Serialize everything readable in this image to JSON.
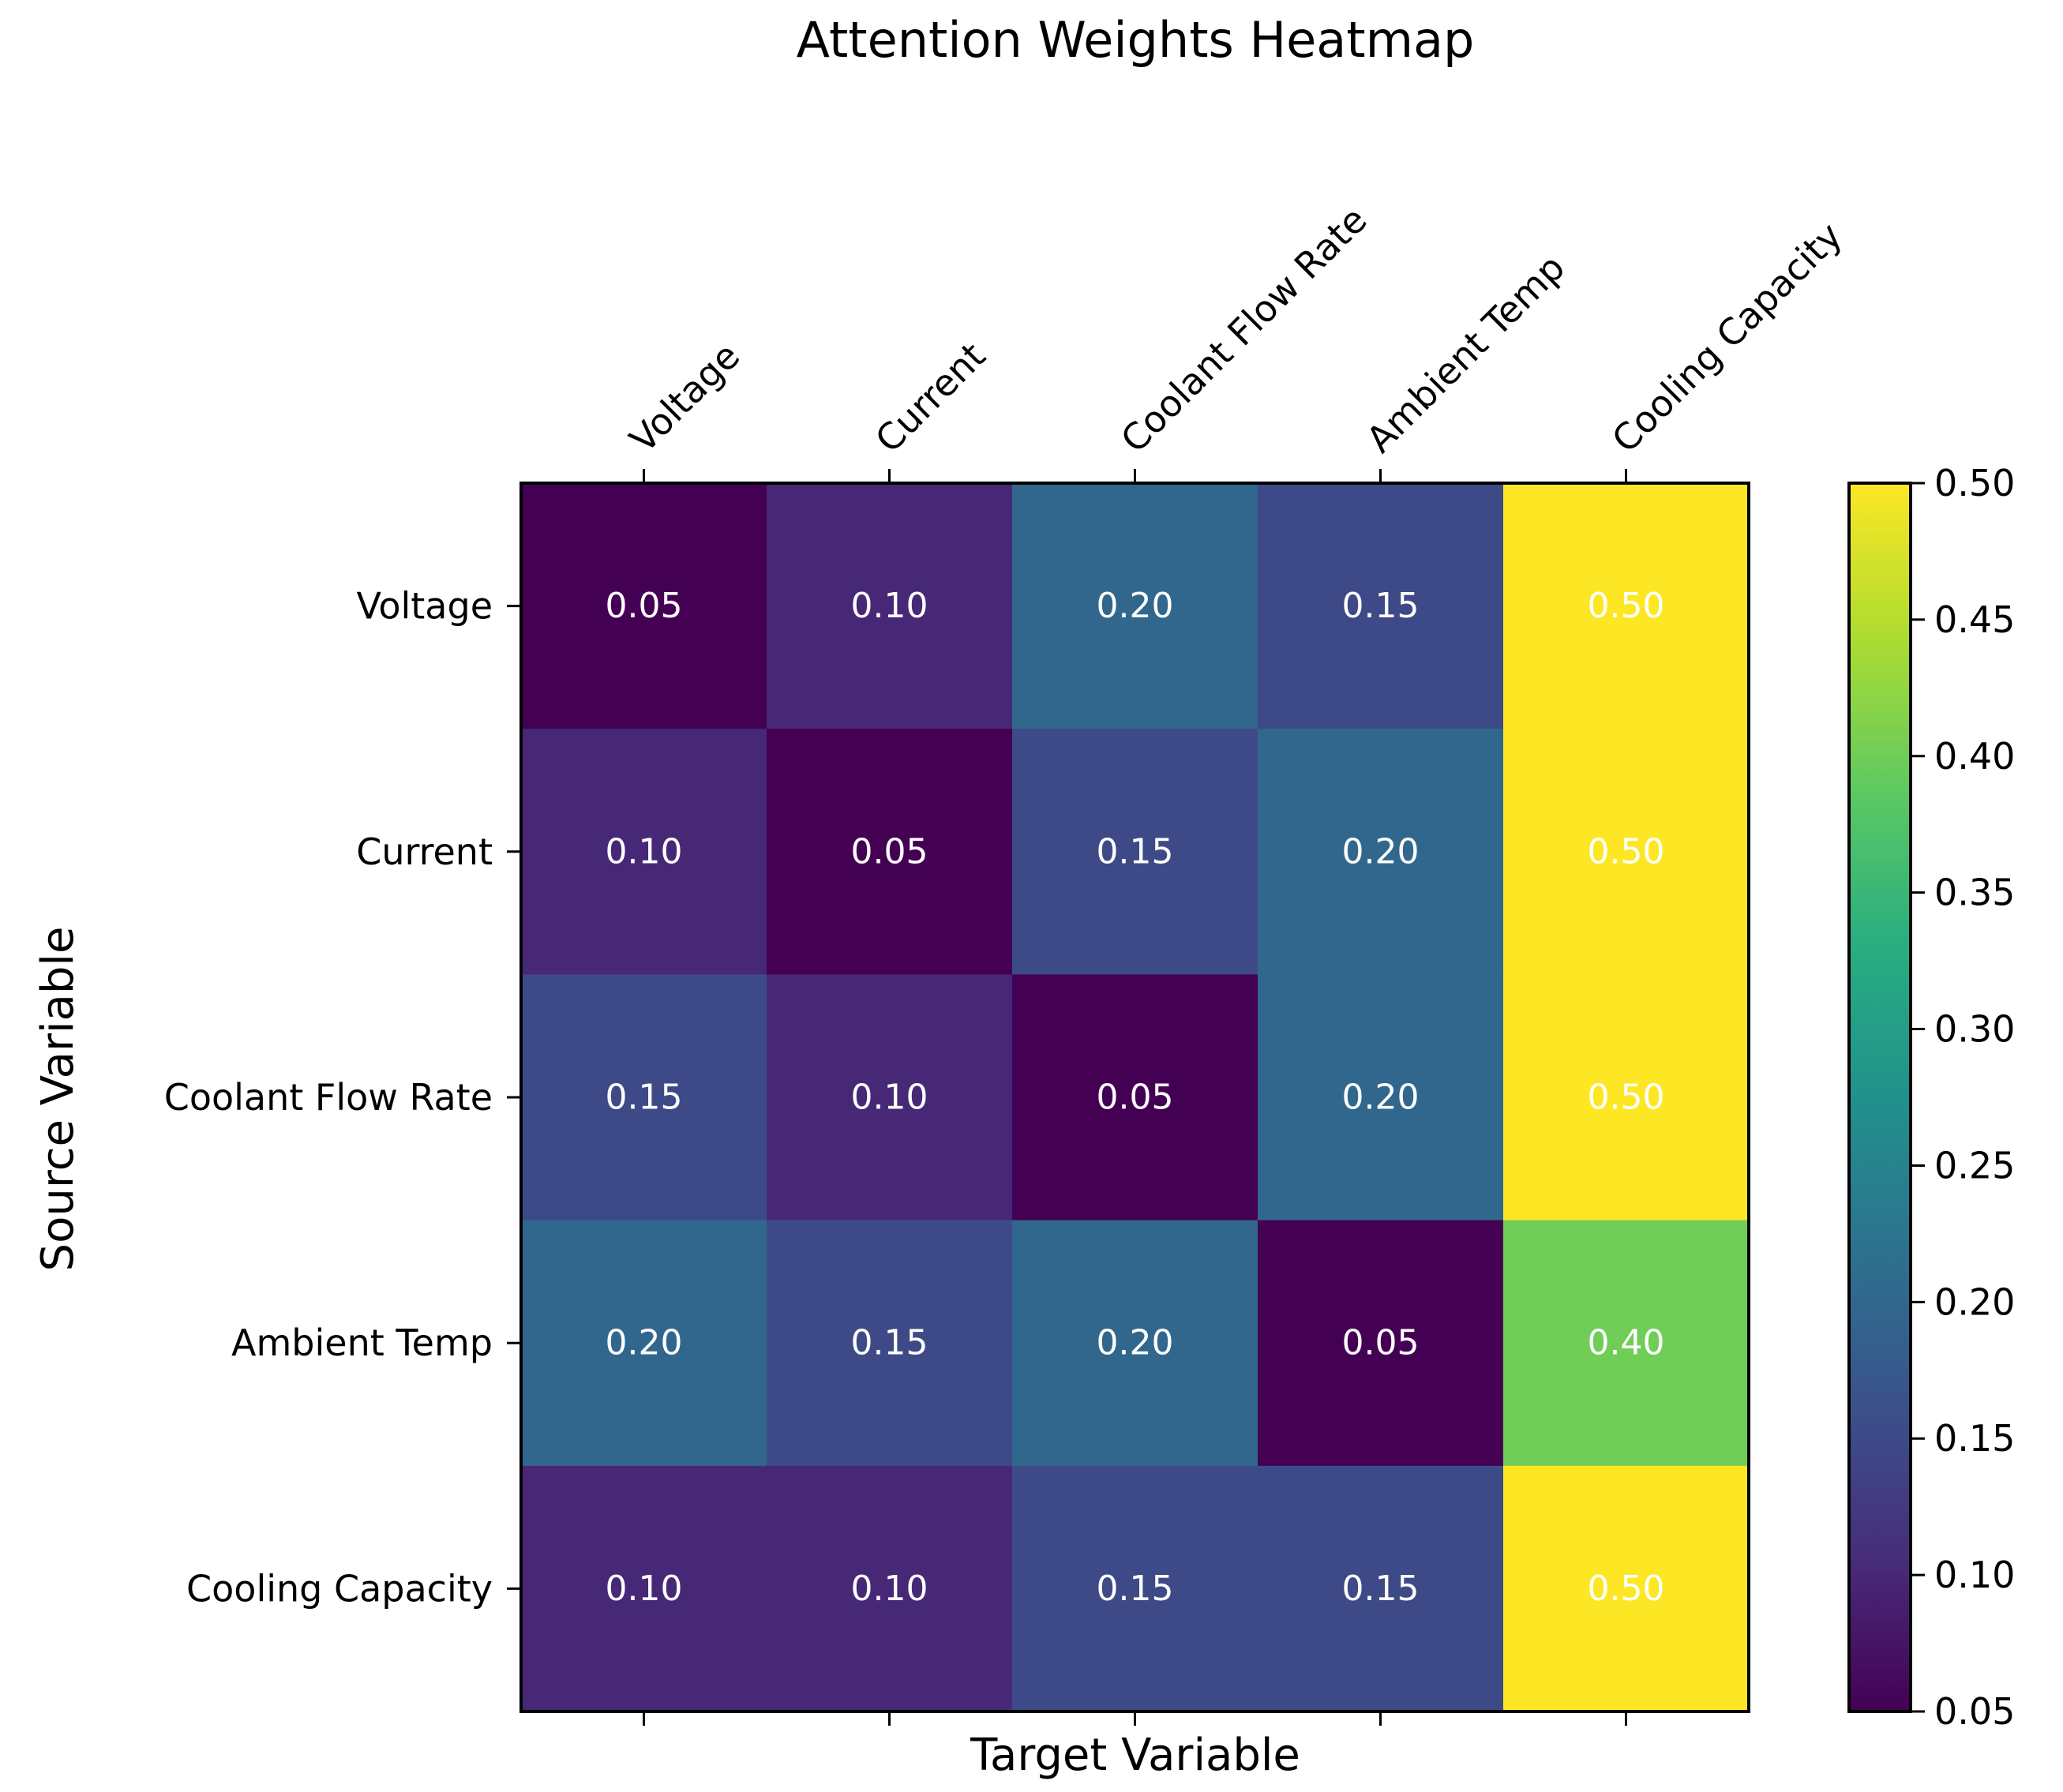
{
  "chart_data": {
    "type": "heatmap",
    "title": "Attention Weights Heatmap",
    "xlabel": "Target Variable",
    "ylabel": "Source Variable",
    "x_categories": [
      "Voltage",
      "Current",
      "Coolant Flow Rate",
      "Ambient Temp",
      "Cooling Capacity"
    ],
    "y_categories": [
      "Voltage",
      "Current",
      "Coolant Flow Rate",
      "Ambient Temp",
      "Cooling Capacity"
    ],
    "values": [
      [
        0.05,
        0.1,
        0.2,
        0.15,
        0.5
      ],
      [
        0.1,
        0.05,
        0.15,
        0.2,
        0.5
      ],
      [
        0.15,
        0.1,
        0.05,
        0.2,
        0.5
      ],
      [
        0.2,
        0.15,
        0.2,
        0.05,
        0.4
      ],
      [
        0.1,
        0.1,
        0.15,
        0.15,
        0.5
      ]
    ],
    "value_labels": [
      [
        "0.05",
        "0.10",
        "0.20",
        "0.15",
        "0.50"
      ],
      [
        "0.10",
        "0.05",
        "0.15",
        "0.20",
        "0.50"
      ],
      [
        "0.15",
        "0.10",
        "0.05",
        "0.20",
        "0.50"
      ],
      [
        "0.20",
        "0.15",
        "0.20",
        "0.05",
        "0.40"
      ],
      [
        "0.10",
        "0.10",
        "0.15",
        "0.15",
        "0.50"
      ]
    ],
    "colormap": "viridis",
    "vmin": 0.05,
    "vmax": 0.5,
    "colorbar_ticks": [
      "0.05",
      "0.10",
      "0.15",
      "0.20",
      "0.25",
      "0.30",
      "0.35",
      "0.40",
      "0.45",
      "0.50"
    ],
    "x_tick_position": "top",
    "annotation_color": "#ffffff"
  }
}
